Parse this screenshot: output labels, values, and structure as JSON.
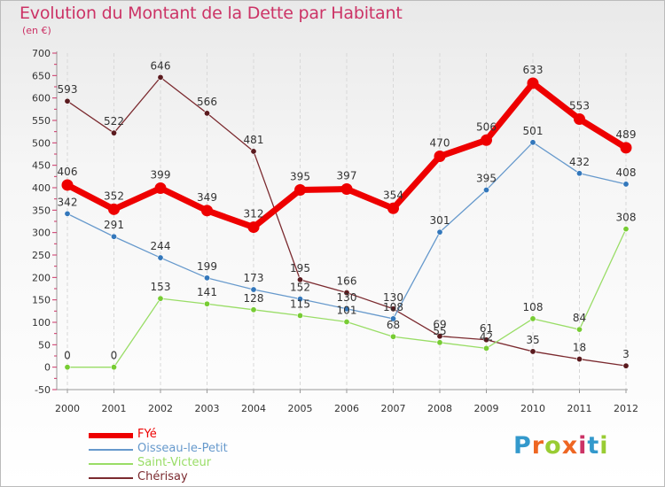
{
  "title": "Evolution du Montant de la Dette par Habitant",
  "subtitle": "(en €)",
  "logo": {
    "text": "Proxiti",
    "colors": [
      "#3399cc",
      "#ee6622",
      "#99cc33",
      "#ee6622",
      "#cc3366",
      "#3399cc",
      "#99cc33"
    ]
  },
  "chart_data": {
    "type": "line",
    "title": "Evolution du Montant de la Dette par Habitant",
    "subtitle": "(en €)",
    "xlabel": "",
    "ylabel": "",
    "x": [
      "2000",
      "2001",
      "2002",
      "2003",
      "2004",
      "2005",
      "2006",
      "2007",
      "2008",
      "2009",
      "2010",
      "2011",
      "2012"
    ],
    "ylim": [
      -50,
      700
    ],
    "yticks": [
      -50,
      0,
      50,
      100,
      150,
      200,
      250,
      300,
      350,
      400,
      450,
      500,
      550,
      600,
      650,
      700
    ],
    "grid": "vertical dashed",
    "legend": "bottom-left",
    "series": [
      {
        "name": "Chérisay",
        "color": "#7b2a2f",
        "markerColor": "#5a1a1e",
        "width": 1.3,
        "marker": 3.2,
        "values": [
          593,
          522,
          646,
          566,
          481,
          195,
          166,
          130,
          69,
          61,
          35,
          18,
          3
        ],
        "labels": [
          "593",
          "522",
          "646",
          "566",
          "481",
          "195",
          "166",
          "130",
          "69",
          "61",
          "35",
          "18",
          "3"
        ]
      },
      {
        "name": "Saint-Victeur",
        "color": "#99dd66",
        "markerColor": "#77cc33",
        "width": 1.3,
        "marker": 3.2,
        "values": [
          0,
          0,
          153,
          141,
          128,
          115,
          101,
          68,
          55,
          42,
          108,
          84,
          308
        ],
        "labels": [
          "0",
          "0",
          "153",
          "141",
          "128",
          "115",
          "101",
          "68",
          "55",
          "42",
          "108",
          "84",
          "308"
        ]
      },
      {
        "name": "Oisseau-le-Petit",
        "color": "#6699cc",
        "markerColor": "#3377bb",
        "width": 1.3,
        "marker": 3.2,
        "values": [
          342,
          291,
          244,
          199,
          173,
          152,
          130,
          108,
          301,
          395,
          501,
          432,
          408
        ],
        "labels": [
          "342",
          "291",
          "244",
          "199",
          "173",
          "152",
          "130",
          "108",
          "301",
          "395",
          "501",
          "432",
          "408"
        ]
      },
      {
        "name": "FYé",
        "color": "#ee0000",
        "markerColor": "#ee0000",
        "width": 7,
        "marker": 6.5,
        "values": [
          406,
          352,
          399,
          349,
          312,
          395,
          397,
          354,
          470,
          506,
          633,
          553,
          489
        ],
        "labels": [
          "406",
          "352",
          "399",
          "349",
          "312",
          "395",
          "397",
          "354",
          "470",
          "506",
          "633",
          "553",
          "489"
        ]
      }
    ]
  },
  "legend": [
    {
      "label": "FYé",
      "color": "#ee0000",
      "thick": true
    },
    {
      "label": "Oisseau-le-Petit",
      "color": "#6699cc",
      "thick": false
    },
    {
      "label": "Saint-Victeur",
      "color": "#99dd66",
      "thick": false
    },
    {
      "label": "Chérisay",
      "color": "#7b2a2f",
      "thick": false
    }
  ]
}
